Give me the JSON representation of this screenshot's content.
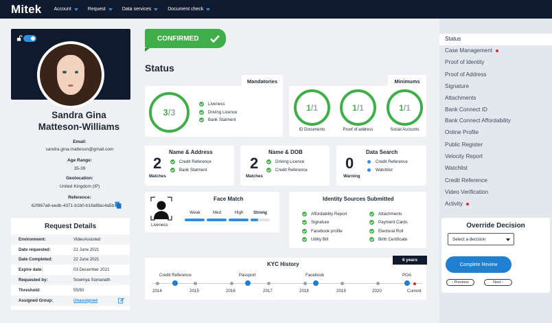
{
  "app": {
    "logo": "Mitek",
    "nav": [
      "Account",
      "Request",
      "Data services",
      "Document check"
    ]
  },
  "profile": {
    "name_line1": "Sandra Gina",
    "name_line2": "Matteson-Williams",
    "email_label": "Email:",
    "email": "sandra.gina.matteson@gmail.com",
    "age_label": "Age Range:",
    "age": "35-39",
    "geo_label": "Geolocation:",
    "geo": "United Kingdom (IP)",
    "ref_label": "Reference:",
    "ref": "62f867a8-eedb-4371-b1b0-b18af8ac4a5b"
  },
  "request": {
    "title": "Request Details",
    "rows": [
      {
        "label": "Environment:",
        "value": "VideoAssisted"
      },
      {
        "label": "Date requested:",
        "value": "21 June 2021"
      },
      {
        "label": "Date Completed:",
        "value": "22 June 2021"
      },
      {
        "label": "Expire date:",
        "value": "03 December 2021"
      },
      {
        "label": "Requested by:",
        "value": "Sowmya Somanath"
      },
      {
        "label": "Threshold:",
        "value": "55/50"
      },
      {
        "label": "Assigned Group:",
        "value": "Unassigned"
      }
    ]
  },
  "status": {
    "confirmed": "CONFIRMED",
    "title": "Status",
    "mandatories_label": "Mandatories",
    "mandatories_num": "3",
    "mandatories_den": "3",
    "mandatories_items": [
      "Liveness",
      "Driving Licence",
      "Bank Statment"
    ],
    "minimums_label": "Minimums",
    "minimums": [
      {
        "num": "1",
        "den": "1",
        "label": "ID Documents"
      },
      {
        "num": "1",
        "den": "1",
        "label": "Proof of address"
      },
      {
        "num": "1",
        "den": "1",
        "label": "Social Accounts"
      }
    ]
  },
  "name_address": {
    "title": "Name & Address",
    "count": "2",
    "sub": "Matches",
    "items": [
      "Credit Reference",
      "Bank Statment"
    ]
  },
  "name_dob": {
    "title": "Name & DOB",
    "count": "2",
    "sub": "Matches",
    "items": [
      "Driving Licence",
      "Credit Reference"
    ]
  },
  "data_search": {
    "title": "Data Search",
    "count": "0",
    "sub": "Warning",
    "items": [
      "Credit Reference",
      "Watchlist"
    ]
  },
  "face_match": {
    "title": "Face Match",
    "caption": "Liveness",
    "levels": [
      "Weak",
      "Med",
      "High",
      "Strong"
    ],
    "level_value": 0.85
  },
  "identity_sources": {
    "title": "Identity Sources Submitted",
    "col1": [
      "Affordability Report",
      "Signature",
      "Facebook profile",
      "Utility Bill"
    ],
    "col2": [
      "Attachments",
      "Payment Cards",
      "Electoral Roll",
      "Birth Certificate"
    ]
  },
  "kyc": {
    "title": "KYC History",
    "badge": "6 years",
    "years": [
      "2014",
      "2015",
      "2016",
      "2017",
      "2018",
      "2019",
      "2020",
      "Current"
    ],
    "events": [
      "Credit Reference",
      "Passport",
      "Facebook",
      "POA"
    ]
  },
  "sidebar": {
    "items": [
      {
        "label": "Status",
        "alert": false,
        "active": true
      },
      {
        "label": "Case Management",
        "alert": true,
        "active": false
      },
      {
        "label": "Proof of Identity",
        "alert": false,
        "active": false
      },
      {
        "label": "Proof of Address",
        "alert": false,
        "active": false
      },
      {
        "label": "Signature",
        "alert": false,
        "active": false
      },
      {
        "label": "Attachments",
        "alert": false,
        "active": false
      },
      {
        "label": "Bank Connect ID",
        "alert": false,
        "active": false
      },
      {
        "label": "Bank Connect Affordability",
        "alert": false,
        "active": false
      },
      {
        "label": "Online Profile",
        "alert": false,
        "active": false
      },
      {
        "label": "Public Register",
        "alert": false,
        "active": false
      },
      {
        "label": "Velocity Report",
        "alert": false,
        "active": false
      },
      {
        "label": "Watchlist",
        "alert": false,
        "active": false
      },
      {
        "label": "Credit Reference",
        "alert": false,
        "active": false
      },
      {
        "label": "Video Verification",
        "alert": false,
        "active": false
      },
      {
        "label": "Activity",
        "alert": true,
        "active": false
      }
    ]
  },
  "override": {
    "title": "Override Decision",
    "select_placeholder": "Select a decision",
    "complete": "Complete Review",
    "previous": "Previous",
    "next": "Next"
  },
  "colors": {
    "navy": "#0f1a2e",
    "green": "#3fae49",
    "blue": "#2f8fe0",
    "alert": "#e0243a"
  }
}
